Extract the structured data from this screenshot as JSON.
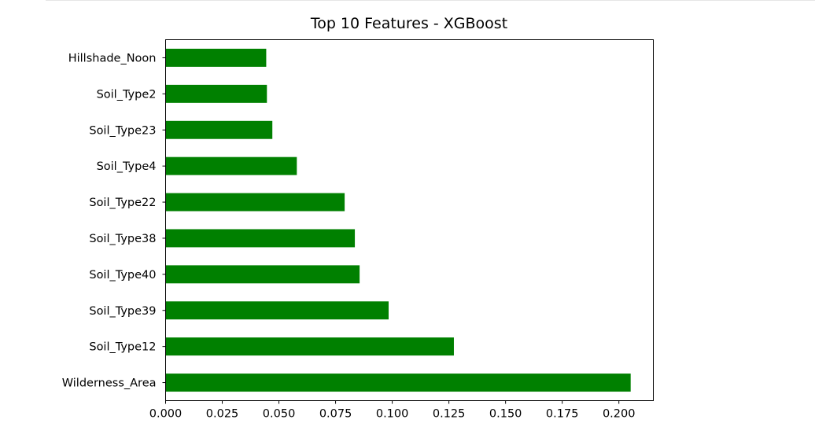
{
  "chart_data": {
    "type": "bar",
    "orientation": "horizontal",
    "title": "Top 10 Features - XGBoost",
    "xlabel": "",
    "ylabel": "",
    "categories": [
      "Wilderness_Area",
      "Soil_Type12",
      "Soil_Type39",
      "Soil_Type40",
      "Soil_Type38",
      "Soil_Type22",
      "Soil_Type4",
      "Soil_Type23",
      "Soil_Type2",
      "Hillshade_Noon"
    ],
    "values": [
      0.2052,
      0.1272,
      0.0984,
      0.0856,
      0.0835,
      0.079,
      0.0579,
      0.0471,
      0.0447,
      0.0444
    ],
    "xlim": [
      0,
      0.2152
    ],
    "xticks": [
      "0.000",
      "0.025",
      "0.050",
      "0.075",
      "0.100",
      "0.125",
      "0.150",
      "0.175",
      "0.200"
    ],
    "bar_color": "#008000",
    "grid": false,
    "legend": "none"
  }
}
